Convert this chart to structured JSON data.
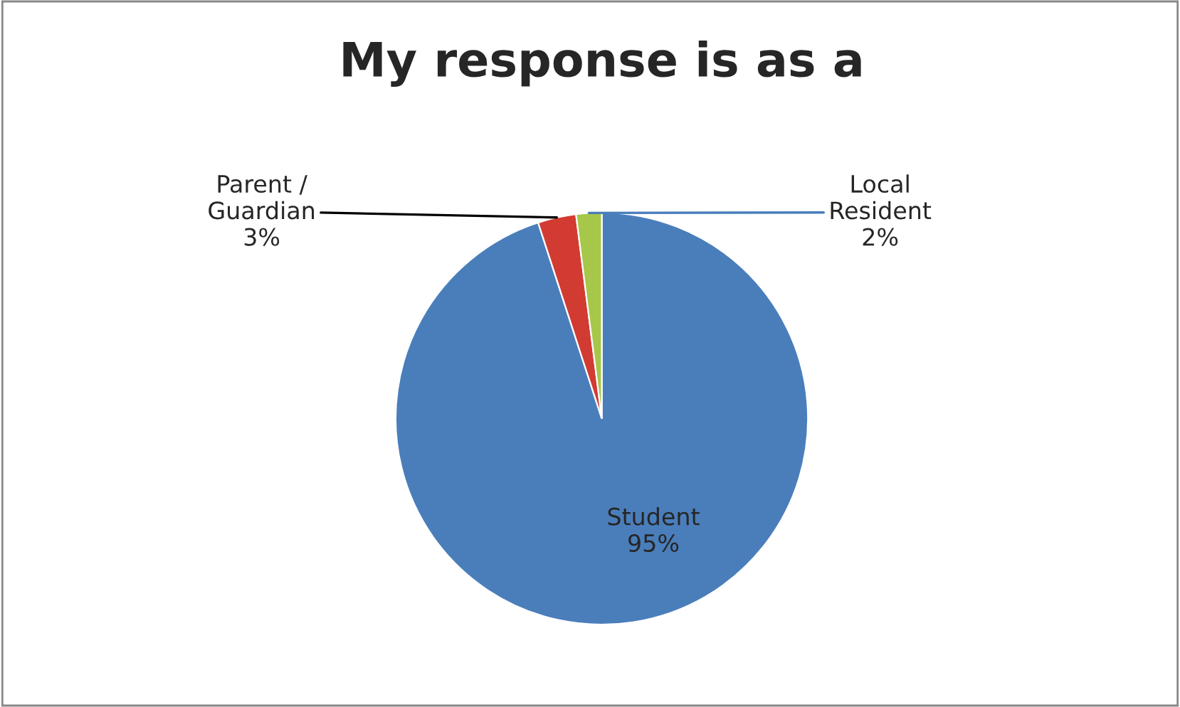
{
  "chart_data": {
    "type": "pie",
    "title": "My response is as a",
    "categories": [
      "Student",
      "Parent /\nGuardian",
      "Local\nResident"
    ],
    "values": [
      95,
      3,
      2
    ],
    "colors": [
      "#4a7ebb",
      "#d23b32",
      "#a6c74a"
    ],
    "value_labels": [
      "95%",
      "3%",
      "2%"
    ],
    "legend": false
  }
}
